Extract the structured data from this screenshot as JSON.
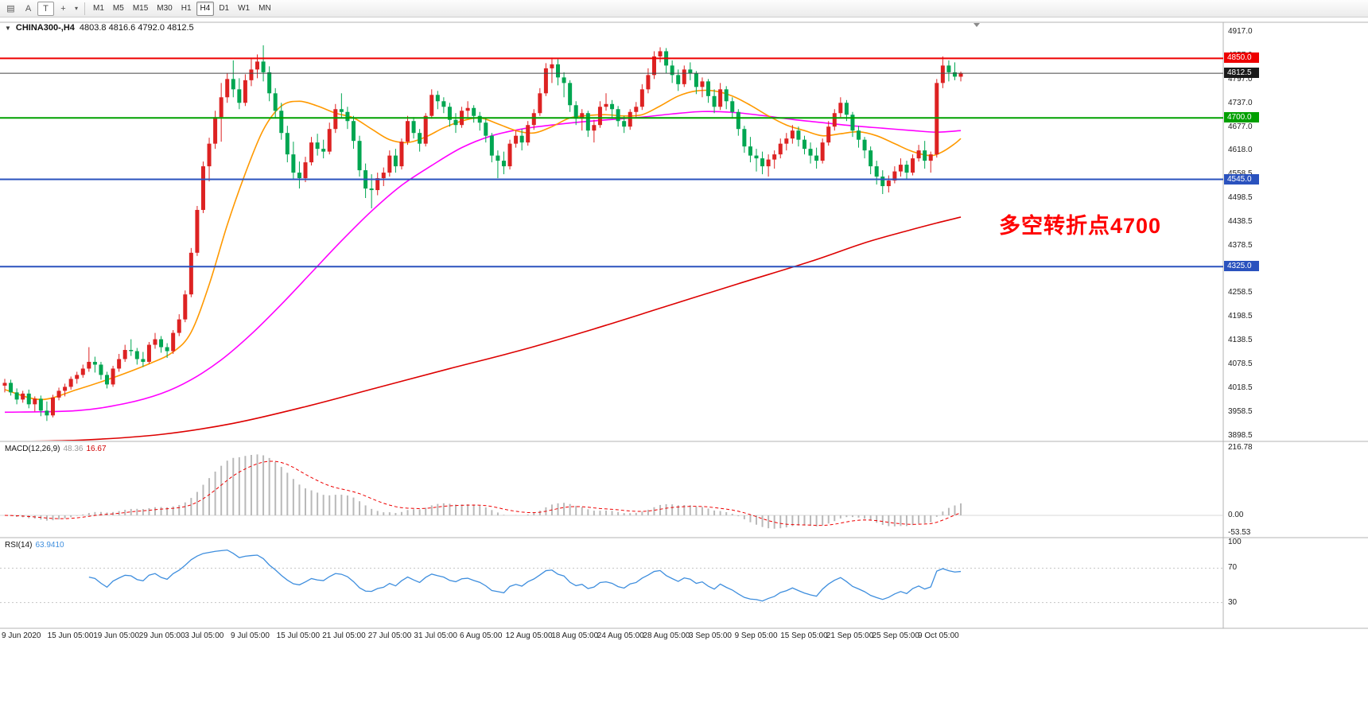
{
  "toolbar": {
    "icons": [
      {
        "name": "chart-window-icon",
        "glyph": "▤"
      },
      {
        "name": "annotation-a-icon",
        "glyph": "A"
      },
      {
        "name": "text-tool-icon",
        "glyph": "T"
      },
      {
        "name": "crosshair-tool-icon",
        "glyph": "+"
      },
      {
        "name": "dropdown-caret-icon",
        "glyph": "▾"
      }
    ],
    "timeframes": [
      "M1",
      "M5",
      "M15",
      "M30",
      "H1",
      "H4",
      "D1",
      "W1",
      "MN"
    ],
    "active_timeframe": "H4"
  },
  "chart": {
    "collapse_icon": "▼",
    "symbol": "CHINA300-,H4",
    "ohlc": "4803.8 4816.6 4792.0 4812.5",
    "annotation": {
      "text": "多空转折点4700",
      "color": "#ff0000"
    },
    "hlines": [
      {
        "price": 4850.0,
        "color": "#ee0000",
        "width": 2,
        "label": "4850.0"
      },
      {
        "price": 4812.5,
        "color": "#444444",
        "width": 1,
        "label": "4812.5",
        "badge": "#1a1a1a"
      },
      {
        "price": 4700.0,
        "color": "#00a000",
        "width": 2,
        "label": "4700.0"
      },
      {
        "price": 4545.0,
        "color": "#2a52be",
        "width": 2,
        "label": "4545.0"
      },
      {
        "price": 4325.0,
        "color": "#2a52be",
        "width": 2,
        "label": "4325.0"
      }
    ],
    "price_axis_ticks": [
      "4917.0",
      "4857.0",
      "4797.0",
      "4737.0",
      "4677.0",
      "4618.0",
      "4558.5",
      "4498.5",
      "4438.5",
      "4378.5",
      "4318.5",
      "4258.5",
      "4198.5",
      "4138.5",
      "4078.5",
      "4018.5",
      "3958.5",
      "3898.5"
    ],
    "time_axis": [
      "9 Jun 2020",
      "15 Jun 05:00",
      "19 Jun 05:00",
      "29 Jun 05:00",
      "3 Jul 05:00",
      "9 Jul 05:00",
      "15 Jul 05:00",
      "21 Jul 05:00",
      "27 Jul 05:00",
      "31 Jul 05:00",
      "6 Aug 05:00",
      "12 Aug 05:00",
      "18 Aug 05:00",
      "24 Aug 05:00",
      "28 Aug 05:00",
      "3 Sep 05:00",
      "9 Sep 05:00",
      "15 Sep 05:00",
      "21 Sep 05:00",
      "25 Sep 05:00",
      "9 Oct 05:00"
    ]
  },
  "chart_data": {
    "type": "candlestick",
    "title": "CHINA300-,H4",
    "ylim": [
      3898.5,
      4917.0
    ],
    "colors": {
      "up": "#dd2222",
      "down": "#00a651",
      "ma_fast": "#ff9900",
      "ma_mid": "#ff00ff",
      "ma_slow": "#dd0000",
      "macd_hist": "#b9b9b9",
      "macd_signal": "#ee0000",
      "rsi": "#3e8ede"
    },
    "candles": [
      [
        4025,
        4042,
        4008,
        4032
      ],
      [
        4032,
        4040,
        4000,
        4008
      ],
      [
        4008,
        4018,
        3978,
        3990
      ],
      [
        3990,
        4012,
        3982,
        4005
      ],
      [
        4005,
        4015,
        3968,
        3978
      ],
      [
        3978,
        3998,
        3960,
        3992
      ],
      [
        3992,
        4000,
        3948,
        3962
      ],
      [
        3962,
        3985,
        3936,
        3950
      ],
      [
        3950,
        4002,
        3945,
        3995
      ],
      [
        3995,
        4020,
        3988,
        4012
      ],
      [
        4012,
        4030,
        3998,
        4022
      ],
      [
        4022,
        4048,
        4015,
        4042
      ],
      [
        4042,
        4060,
        4030,
        4052
      ],
      [
        4052,
        4078,
        4045,
        4068
      ],
      [
        4068,
        4122,
        4060,
        4085
      ],
      [
        4085,
        4098,
        4058,
        4078
      ],
      [
        4078,
        4085,
        4040,
        4052
      ],
      [
        4052,
        4060,
        4018,
        4028
      ],
      [
        4028,
        4075,
        4022,
        4068
      ],
      [
        4068,
        4105,
        4060,
        4092
      ],
      [
        4092,
        4128,
        4085,
        4115
      ],
      [
        4115,
        4142,
        4100,
        4112
      ],
      [
        4112,
        4120,
        4078,
        4092
      ],
      [
        4092,
        4110,
        4072,
        4085
      ],
      [
        4085,
        4135,
        4080,
        4128
      ],
      [
        4128,
        4158,
        4118,
        4142
      ],
      [
        4142,
        4150,
        4108,
        4122
      ],
      [
        4122,
        4132,
        4095,
        4112
      ],
      [
        4112,
        4165,
        4105,
        4158
      ],
      [
        4158,
        4205,
        4150,
        4192
      ],
      [
        4192,
        4265,
        4185,
        4255
      ],
      [
        4255,
        4372,
        4248,
        4360
      ],
      [
        4360,
        4478,
        4352,
        4468
      ],
      [
        4468,
        4590,
        4460,
        4578
      ],
      [
        4578,
        4650,
        4540,
        4635
      ],
      [
        4635,
        4718,
        4622,
        4702
      ],
      [
        4702,
        4788,
        4640,
        4752
      ],
      [
        4752,
        4812,
        4738,
        4798
      ],
      [
        4798,
        4845,
        4752,
        4772
      ],
      [
        4772,
        4800,
        4722,
        4738
      ],
      [
        4738,
        4810,
        4730,
        4795
      ],
      [
        4795,
        4852,
        4780,
        4822
      ],
      [
        4822,
        4860,
        4800,
        4842
      ],
      [
        4842,
        4883,
        4792,
        4815
      ],
      [
        4815,
        4830,
        4742,
        4762
      ],
      [
        4762,
        4775,
        4700,
        4718
      ],
      [
        4718,
        4738,
        4645,
        4662
      ],
      [
        4662,
        4680,
        4588,
        4608
      ],
      [
        4608,
        4640,
        4545,
        4562
      ],
      [
        4562,
        4590,
        4522,
        4548
      ],
      [
        4548,
        4602,
        4538,
        4588
      ],
      [
        4588,
        4652,
        4580,
        4638
      ],
      [
        4638,
        4660,
        4605,
        4622
      ],
      [
        4622,
        4645,
        4598,
        4615
      ],
      [
        4615,
        4688,
        4608,
        4672
      ],
      [
        4672,
        4735,
        4662,
        4722
      ],
      [
        4722,
        4762,
        4700,
        4715
      ],
      [
        4715,
        4728,
        4672,
        4692
      ],
      [
        4692,
        4705,
        4622,
        4642
      ],
      [
        4642,
        4655,
        4552,
        4568
      ],
      [
        4568,
        4585,
        4498,
        4522
      ],
      [
        4522,
        4558,
        4472,
        4518
      ],
      [
        4518,
        4562,
        4505,
        4548
      ],
      [
        4548,
        4575,
        4528,
        4562
      ],
      [
        4562,
        4618,
        4552,
        4605
      ],
      [
        4605,
        4622,
        4562,
        4578
      ],
      [
        4578,
        4648,
        4570,
        4640
      ],
      [
        4640,
        4705,
        4632,
        4692
      ],
      [
        4692,
        4702,
        4648,
        4662
      ],
      [
        4662,
        4672,
        4615,
        4635
      ],
      [
        4635,
        4712,
        4628,
        4705
      ],
      [
        4705,
        4772,
        4698,
        4758
      ],
      [
        4758,
        4768,
        4722,
        4742
      ],
      [
        4742,
        4752,
        4712,
        4728
      ],
      [
        4728,
        4738,
        4678,
        4695
      ],
      [
        4695,
        4712,
        4662,
        4682
      ],
      [
        4682,
        4728,
        4675,
        4718
      ],
      [
        4718,
        4742,
        4702,
        4725
      ],
      [
        4725,
        4732,
        4688,
        4705
      ],
      [
        4705,
        4715,
        4668,
        4688
      ],
      [
        4688,
        4700,
        4638,
        4655
      ],
      [
        4655,
        4662,
        4588,
        4605
      ],
      [
        4605,
        4618,
        4548,
        4592
      ],
      [
        4592,
        4615,
        4558,
        4578
      ],
      [
        4578,
        4645,
        4570,
        4635
      ],
      [
        4635,
        4668,
        4625,
        4655
      ],
      [
        4655,
        4672,
        4618,
        4638
      ],
      [
        4638,
        4692,
        4630,
        4682
      ],
      [
        4682,
        4722,
        4670,
        4712
      ],
      [
        4712,
        4775,
        4705,
        4762
      ],
      [
        4762,
        4838,
        4755,
        4825
      ],
      [
        4825,
        4852,
        4788,
        4835
      ],
      [
        4835,
        4848,
        4782,
        4802
      ],
      [
        4802,
        4815,
        4752,
        4788
      ],
      [
        4788,
        4795,
        4715,
        4732
      ],
      [
        4732,
        4742,
        4682,
        4698
      ],
      [
        4698,
        4722,
        4668,
        4712
      ],
      [
        4712,
        4718,
        4652,
        4668
      ],
      [
        4668,
        4695,
        4638,
        4682
      ],
      [
        4682,
        4742,
        4675,
        4728
      ],
      [
        4728,
        4762,
        4718,
        4735
      ],
      [
        4735,
        4745,
        4698,
        4722
      ],
      [
        4722,
        4730,
        4678,
        4692
      ],
      [
        4692,
        4705,
        4662,
        4678
      ],
      [
        4678,
        4722,
        4670,
        4715
      ],
      [
        4715,
        4740,
        4702,
        4728
      ],
      [
        4728,
        4785,
        4720,
        4772
      ],
      [
        4772,
        4825,
        4762,
        4808
      ],
      [
        4808,
        4868,
        4798,
        4855
      ],
      [
        4855,
        4878,
        4840,
        4868
      ],
      [
        4868,
        4876,
        4812,
        4832
      ],
      [
        4832,
        4845,
        4788,
        4808
      ],
      [
        4808,
        4822,
        4768,
        4785
      ],
      [
        4785,
        4832,
        4778,
        4822
      ],
      [
        4822,
        4840,
        4795,
        4812
      ],
      [
        4812,
        4818,
        4760,
        4778
      ],
      [
        4778,
        4802,
        4752,
        4792
      ],
      [
        4792,
        4798,
        4738,
        4755
      ],
      [
        4755,
        4772,
        4712,
        4728
      ],
      [
        4728,
        4788,
        4720,
        4772
      ],
      [
        4772,
        4780,
        4722,
        4742
      ],
      [
        4742,
        4752,
        4698,
        4715
      ],
      [
        4715,
        4722,
        4655,
        4672
      ],
      [
        4672,
        4680,
        4612,
        4628
      ],
      [
        4628,
        4652,
        4588,
        4605
      ],
      [
        4605,
        4622,
        4565,
        4598
      ],
      [
        4598,
        4615,
        4558,
        4578
      ],
      [
        4578,
        4608,
        4552,
        4595
      ],
      [
        4595,
        4618,
        4572,
        4608
      ],
      [
        4608,
        4648,
        4598,
        4635
      ],
      [
        4635,
        4662,
        4618,
        4648
      ],
      [
        4648,
        4682,
        4635,
        4668
      ],
      [
        4668,
        4678,
        4628,
        4645
      ],
      [
        4645,
        4655,
        4608,
        4622
      ],
      [
        4622,
        4638,
        4585,
        4605
      ],
      [
        4605,
        4625,
        4572,
        4592
      ],
      [
        4592,
        4648,
        4585,
        4638
      ],
      [
        4638,
        4692,
        4630,
        4678
      ],
      [
        4678,
        4722,
        4668,
        4712
      ],
      [
        4712,
        4752,
        4702,
        4738
      ],
      [
        4738,
        4745,
        4692,
        4708
      ],
      [
        4708,
        4715,
        4652,
        4668
      ],
      [
        4668,
        4680,
        4625,
        4645
      ],
      [
        4645,
        4652,
        4598,
        4618
      ],
      [
        4618,
        4628,
        4558,
        4578
      ],
      [
        4578,
        4592,
        4532,
        4552
      ],
      [
        4552,
        4568,
        4508,
        4528
      ],
      [
        4528,
        4555,
        4512,
        4542
      ],
      [
        4542,
        4578,
        4535,
        4565
      ],
      [
        4565,
        4598,
        4552,
        4582
      ],
      [
        4582,
        4592,
        4545,
        4562
      ],
      [
        4562,
        4608,
        4555,
        4598
      ],
      [
        4598,
        4632,
        4590,
        4618
      ],
      [
        4618,
        4642,
        4572,
        4592
      ],
      [
        4592,
        4615,
        4562,
        4608
      ],
      [
        4608,
        4798,
        4600,
        4788
      ],
      [
        4788,
        4855,
        4775,
        4832
      ],
      [
        4832,
        4845,
        4792,
        4815
      ],
      [
        4815,
        4840,
        4795,
        4804
      ],
      [
        4803.8,
        4816.6,
        4792.0,
        4812.5
      ]
    ],
    "moving_averages": {
      "fast": [
        [
          0,
          4015
        ],
        [
          6,
          3990
        ],
        [
          12,
          4015
        ],
        [
          18,
          4045
        ],
        [
          24,
          4080
        ],
        [
          28,
          4110
        ],
        [
          31,
          4160
        ],
        [
          34,
          4280
        ],
        [
          37,
          4430
        ],
        [
          40,
          4560
        ],
        [
          43,
          4670
        ],
        [
          46,
          4730
        ],
        [
          49,
          4742
        ],
        [
          52,
          4730
        ],
        [
          55,
          4712
        ],
        [
          58,
          4700
        ],
        [
          61,
          4672
        ],
        [
          64,
          4645
        ],
        [
          67,
          4638
        ],
        [
          70,
          4652
        ],
        [
          73,
          4675
        ],
        [
          76,
          4692
        ],
        [
          79,
          4700
        ],
        [
          82,
          4685
        ],
        [
          85,
          4668
        ],
        [
          88,
          4662
        ],
        [
          91,
          4678
        ],
        [
          94,
          4700
        ],
        [
          97,
          4706
        ],
        [
          100,
          4708
        ],
        [
          103,
          4705
        ],
        [
          106,
          4708
        ],
        [
          109,
          4730
        ],
        [
          112,
          4755
        ],
        [
          115,
          4768
        ],
        [
          118,
          4768
        ],
        [
          121,
          4755
        ],
        [
          124,
          4732
        ],
        [
          127,
          4705
        ],
        [
          130,
          4682
        ],
        [
          133,
          4668
        ],
        [
          136,
          4655
        ],
        [
          139,
          4660
        ],
        [
          142,
          4665
        ],
        [
          145,
          4655
        ],
        [
          148,
          4635
        ],
        [
          151,
          4615
        ],
        [
          154,
          4605
        ],
        [
          156,
          4615
        ],
        [
          158,
          4635
        ],
        [
          159,
          4648
        ]
      ],
      "mid": [
        [
          0,
          3958
        ],
        [
          12,
          3962
        ],
        [
          20,
          3980
        ],
        [
          26,
          4005
        ],
        [
          31,
          4040
        ],
        [
          36,
          4090
        ],
        [
          41,
          4155
        ],
        [
          46,
          4230
        ],
        [
          51,
          4310
        ],
        [
          56,
          4390
        ],
        [
          61,
          4465
        ],
        [
          66,
          4530
        ],
        [
          71,
          4580
        ],
        [
          76,
          4625
        ],
        [
          81,
          4655
        ],
        [
          86,
          4672
        ],
        [
          91,
          4682
        ],
        [
          96,
          4690
        ],
        [
          101,
          4696
        ],
        [
          106,
          4702
        ],
        [
          111,
          4710
        ],
        [
          116,
          4716
        ],
        [
          121,
          4714
        ],
        [
          126,
          4706
        ],
        [
          131,
          4696
        ],
        [
          136,
          4688
        ],
        [
          141,
          4680
        ],
        [
          146,
          4674
        ],
        [
          151,
          4668
        ],
        [
          155,
          4664
        ],
        [
          159,
          4668
        ]
      ],
      "slow": [
        [
          0,
          3884
        ],
        [
          13,
          3888
        ],
        [
          26,
          3902
        ],
        [
          38,
          3930
        ],
        [
          50,
          3972
        ],
        [
          62,
          4020
        ],
        [
          74,
          4068
        ],
        [
          86,
          4115
        ],
        [
          98,
          4168
        ],
        [
          110,
          4225
        ],
        [
          122,
          4282
        ],
        [
          134,
          4338
        ],
        [
          143,
          4385
        ],
        [
          150,
          4415
        ],
        [
          155,
          4435
        ],
        [
          159,
          4450
        ]
      ]
    },
    "indicators": {
      "macd": {
        "label": "MACD(12,26,9)",
        "value_macd": "48.36",
        "value_signal": "16.67",
        "axis": [
          "216.78",
          "0.00",
          "-53.53"
        ]
      },
      "rsi": {
        "label": "RSI(14)",
        "value": "63.9410",
        "axis": [
          "100",
          "70",
          "30"
        ],
        "levels": [
          70,
          30
        ]
      }
    }
  }
}
